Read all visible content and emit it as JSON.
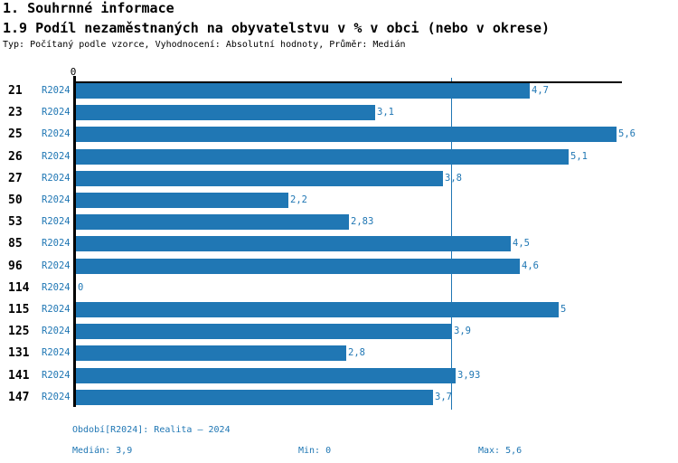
{
  "header": {
    "title": "1. Souhrnné informace",
    "subtitle": "1.9 Podíl nezaměstnaných na obyvatelstvu v % v obci (nebo v okrese)",
    "meta": "Typ: Počítaný podle vzorce, Vyhodnocení: Absolutní hodnoty, Průměr: Medián"
  },
  "chart_data": {
    "type": "bar",
    "orientation": "horizontal",
    "title": "1.9 Podíl nezaměstnaných na obyvatelstvu v % v obci (nebo v okrese)",
    "categories": [
      "21",
      "23",
      "25",
      "26",
      "27",
      "50",
      "53",
      "85",
      "96",
      "114",
      "115",
      "125",
      "131",
      "141",
      "147"
    ],
    "series": [
      {
        "name": "R2024",
        "values": [
          4.7,
          3.1,
          5.6,
          5.1,
          3.8,
          2.2,
          2.83,
          4.5,
          4.6,
          0,
          5,
          3.9,
          2.8,
          3.93,
          3.7
        ]
      }
    ],
    "value_labels": [
      "4,7",
      "3,1",
      "5,6",
      "5,1",
      "3,8",
      "2,2",
      "2,83",
      "4,5",
      "4,6",
      "0",
      "5",
      "3,9",
      "2,8",
      "3,93",
      "3,7"
    ],
    "xlabel": "",
    "ylabel": "",
    "xlim": [
      0,
      5.6
    ],
    "x_tick_labels": [
      "0"
    ],
    "median_line_x": 3.9,
    "grid": "off",
    "legend": "none",
    "bar_color": "#2077B4",
    "text_color": "#2077B4"
  },
  "footer": {
    "period": "Období[R2024]: Realita – 2024",
    "median": "Medián: 3,9",
    "min": "Min: 0",
    "max": "Max: 5,6"
  }
}
